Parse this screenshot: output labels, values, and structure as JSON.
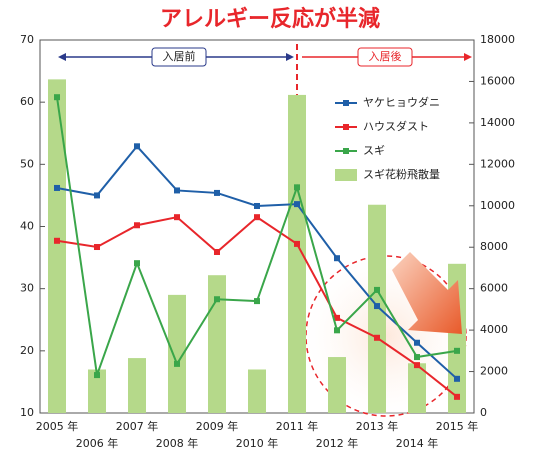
{
  "chart_data": {
    "type": "combo",
    "title": "アレルギー反応が半減",
    "annotations": [
      "入居前",
      "入居後"
    ],
    "categories": [
      "2005 年",
      "2006 年",
      "2007 年",
      "2008 年",
      "2009 年",
      "2010 年",
      "2011 年",
      "2012 年",
      "2013 年",
      "2014 年",
      "2015 年"
    ],
    "series": [
      {
        "name": "ヤケヒョウダニ",
        "type": "line",
        "color": "#1f5fa8",
        "values": [
          46.2,
          45.0,
          52.9,
          45.8,
          45.4,
          43.3,
          43.6,
          34.9,
          27.2,
          21.3,
          15.5
        ]
      },
      {
        "name": "ハウスダスト",
        "type": "line",
        "color": "#e8262b",
        "values": [
          37.7,
          36.7,
          40.2,
          41.5,
          35.9,
          41.5,
          37.2,
          25.3,
          22.1,
          17.7,
          12.6
        ]
      },
      {
        "name": "スギ",
        "type": "line",
        "color": "#3aa64a",
        "values": [
          60.8,
          16.1,
          34.1,
          17.9,
          28.3,
          28.0,
          46.3,
          23.3,
          29.8,
          19.0,
          20.0
        ]
      },
      {
        "name": "スギ花粉飛散量",
        "type": "bar",
        "axis": "y2",
        "color": "#b5d98a",
        "values": [
          16100,
          2100,
          2650,
          5700,
          6650,
          2100,
          15350,
          2700,
          10050,
          2400,
          7200
        ]
      }
    ],
    "ylim": [
      10,
      70
    ],
    "yticks": [
      10,
      20,
      30,
      40,
      50,
      60,
      70
    ],
    "y2lim": [
      0,
      18000
    ],
    "y2ticks": [
      0,
      2000,
      4000,
      6000,
      8000,
      10000,
      12000,
      14000,
      16000,
      18000
    ],
    "legend": "upper right"
  }
}
